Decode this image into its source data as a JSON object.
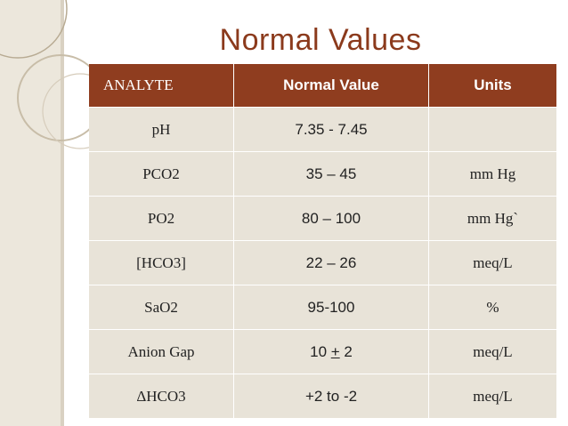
{
  "title": "Normal Values",
  "table": {
    "headers": [
      "ANALYTE",
      "Normal Value",
      "Units"
    ],
    "rows": [
      {
        "analyte": "pH",
        "value": "7.35 - 7.45",
        "units": ""
      },
      {
        "analyte": "PCO2",
        "value": "35 – 45",
        "units": "mm Hg"
      },
      {
        "analyte": "PO2",
        "value": "80 – 100",
        "units": "mm Hg`"
      },
      {
        "analyte": "[HCO3]",
        "value": "22 – 26",
        "units": "meq/L"
      },
      {
        "analyte": "SaO2",
        "value": "95-100",
        "units": "%"
      },
      {
        "analyte": "Anion Gap",
        "value_pre": "10 ",
        "value_pm": "+",
        "value_post": " 2",
        "units": "meq/L"
      },
      {
        "analyte": "ΔHCO3",
        "value": "+2 to -2",
        "units": "meq/L"
      }
    ]
  },
  "colors": {
    "title": "#8b3a1c",
    "header_bg": "#8f3d1f",
    "cell_bg": "#e8e3d8",
    "side_band": "#ece7dc"
  }
}
